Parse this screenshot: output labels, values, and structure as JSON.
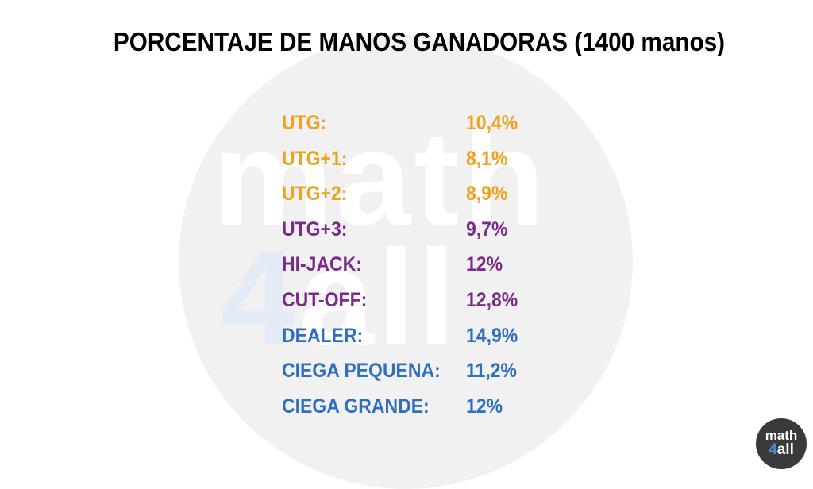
{
  "title": "PORCENTAJE DE MANOS GANADORAS (1400 manos)",
  "colors": {
    "orange": "#f0a11e",
    "purple": "#7b2a8c",
    "blue": "#2f6fc0"
  },
  "rows": [
    {
      "label": "UTG:",
      "value": "10,4%",
      "color": "#f0a11e"
    },
    {
      "label": "UTG+1:",
      "value": "8,1%",
      "color": "#f0a11e"
    },
    {
      "label": "UTG+2:",
      "value": "8,9%",
      "color": "#f0a11e"
    },
    {
      "label": "UTG+3:",
      "value": "9,7%",
      "color": "#7b2a8c"
    },
    {
      "label": "HI-JACK:",
      "value": "12%",
      "color": "#7b2a8c"
    },
    {
      "label": "CUT-OFF:",
      "value": "12,8%",
      "color": "#7b2a8c"
    },
    {
      "label": "DEALER:",
      "value": "14,9%",
      "color": "#2f6fc0"
    },
    {
      "label": "CIEGA PEQUENA:",
      "value": "11,2%",
      "color": "#2f6fc0"
    },
    {
      "label": "CIEGA GRANDE:",
      "value": "12%",
      "color": "#2f6fc0"
    }
  ],
  "watermark": {
    "line1": "math",
    "line2_digit": "4",
    "line2_rest": "all"
  },
  "logo": {
    "line1": "math",
    "line2_digit": "4",
    "line2_rest": "all"
  }
}
